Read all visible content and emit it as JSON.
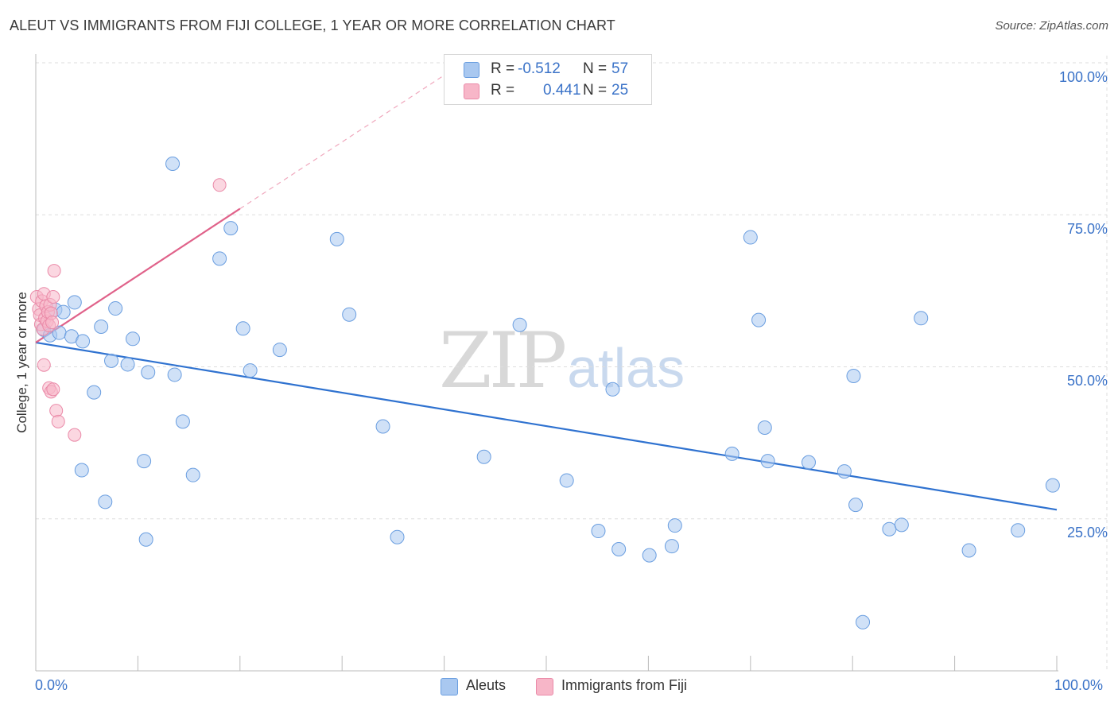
{
  "title": "ALEUT VS IMMIGRANTS FROM FIJI COLLEGE, 1 YEAR OR MORE CORRELATION CHART",
  "source": "Source: ZipAtlas.com",
  "watermark": {
    "zip": "ZIP",
    "atlas": "atlas"
  },
  "legend": {
    "r_label": "R =",
    "n_label": "N =",
    "rows": [
      {
        "r": "-0.512",
        "n": "57"
      },
      {
        "r": "0.441",
        "n": "25"
      }
    ]
  },
  "colors": {
    "aleut_fill": "#a9c8f0",
    "aleut_stroke": "#6a9ee0",
    "aleut_line": "#2f72d0",
    "fiji_fill": "#f7b6c8",
    "fiji_stroke": "#ea8aa8",
    "fiji_line": "#e0628a",
    "tick_label": "#3b73c8",
    "grid": "#dddddd"
  },
  "chart_data": {
    "type": "scatter",
    "title": "ALEUT VS IMMIGRANTS FROM FIJI COLLEGE, 1 YEAR OR MORE CORRELATION CHART",
    "xlabel": "",
    "ylabel": "College, 1 year or more",
    "x_tick_labels": [
      "0.0%",
      "100.0%"
    ],
    "y_tick_labels": [
      "100.0%",
      "75.0%",
      "50.0%",
      "25.0%"
    ],
    "xlim": [
      0,
      100
    ],
    "ylim": [
      0,
      100
    ],
    "y_ticks": [
      100,
      75,
      50,
      25
    ],
    "grid": true,
    "legend_placement": "bottom",
    "series": [
      {
        "name": "Aleuts",
        "r": -0.512,
        "n": 57,
        "trend": {
          "x": [
            0,
            100
          ],
          "y": [
            54.0,
            26.5
          ]
        },
        "points": [
          [
            0.8,
            56.1
          ],
          [
            1.4,
            55.2
          ],
          [
            1.9,
            59.4
          ],
          [
            2.3,
            55.6
          ],
          [
            2.7,
            59.0
          ],
          [
            3.5,
            55.0
          ],
          [
            3.8,
            60.6
          ],
          [
            4.6,
            54.2
          ],
          [
            5.7,
            45.8
          ],
          [
            4.5,
            33.0
          ],
          [
            6.4,
            56.6
          ],
          [
            6.8,
            27.8
          ],
          [
            7.4,
            51.0
          ],
          [
            7.8,
            59.6
          ],
          [
            9.0,
            50.4
          ],
          [
            9.5,
            54.6
          ],
          [
            10.6,
            34.5
          ],
          [
            10.8,
            21.6
          ],
          [
            11.0,
            49.1
          ],
          [
            13.4,
            83.4
          ],
          [
            13.6,
            48.7
          ],
          [
            14.4,
            41.0
          ],
          [
            15.4,
            32.2
          ],
          [
            18.0,
            67.8
          ],
          [
            19.1,
            72.8
          ],
          [
            20.3,
            56.3
          ],
          [
            21.0,
            49.4
          ],
          [
            23.9,
            52.8
          ],
          [
            29.5,
            71.0
          ],
          [
            30.7,
            58.6
          ],
          [
            34.0,
            40.2
          ],
          [
            35.4,
            22.0
          ],
          [
            43.9,
            35.2
          ],
          [
            47.4,
            56.9
          ],
          [
            52.0,
            31.3
          ],
          [
            55.1,
            23.0
          ],
          [
            56.5,
            46.3
          ],
          [
            57.1,
            20.0
          ],
          [
            60.1,
            19.0
          ],
          [
            62.3,
            20.5
          ],
          [
            62.6,
            23.9
          ],
          [
            68.2,
            35.7
          ],
          [
            70.0,
            71.3
          ],
          [
            70.8,
            57.7
          ],
          [
            71.4,
            40.0
          ],
          [
            71.7,
            34.5
          ],
          [
            75.7,
            34.3
          ],
          [
            79.2,
            32.8
          ],
          [
            80.1,
            48.5
          ],
          [
            80.3,
            27.3
          ],
          [
            81.0,
            8.0
          ],
          [
            83.6,
            23.3
          ],
          [
            84.8,
            24.0
          ],
          [
            86.7,
            58.0
          ],
          [
            91.4,
            19.8
          ],
          [
            96.2,
            23.1
          ],
          [
            99.6,
            30.5
          ]
        ]
      },
      {
        "name": "Immigrants from Fiji",
        "r": 0.441,
        "n": 25,
        "trend": {
          "x": [
            0,
            20
          ],
          "y": [
            54.0,
            76.0
          ]
        },
        "trend_dashed": {
          "x": [
            20,
            40.5
          ],
          "y": [
            76.0,
            98.5
          ]
        },
        "points": [
          [
            0.1,
            61.5
          ],
          [
            0.3,
            59.5
          ],
          [
            0.4,
            58.5
          ],
          [
            0.5,
            57.0
          ],
          [
            0.6,
            60.8
          ],
          [
            0.7,
            56.2
          ],
          [
            0.8,
            62.0
          ],
          [
            0.9,
            58.0
          ],
          [
            1.0,
            60.0
          ],
          [
            1.1,
            57.5
          ],
          [
            1.2,
            59.0
          ],
          [
            1.3,
            56.8
          ],
          [
            1.4,
            60.2
          ],
          [
            1.5,
            58.8
          ],
          [
            1.6,
            57.3
          ],
          [
            1.7,
            61.5
          ],
          [
            1.8,
            65.8
          ],
          [
            0.8,
            50.3
          ],
          [
            1.3,
            46.5
          ],
          [
            1.5,
            45.9
          ],
          [
            1.7,
            46.3
          ],
          [
            2.0,
            42.8
          ],
          [
            2.2,
            41.0
          ],
          [
            3.8,
            38.8
          ],
          [
            18.0,
            79.9
          ]
        ]
      }
    ]
  },
  "bottom_legend": [
    "Aleuts",
    "Immigrants from Fiji"
  ]
}
